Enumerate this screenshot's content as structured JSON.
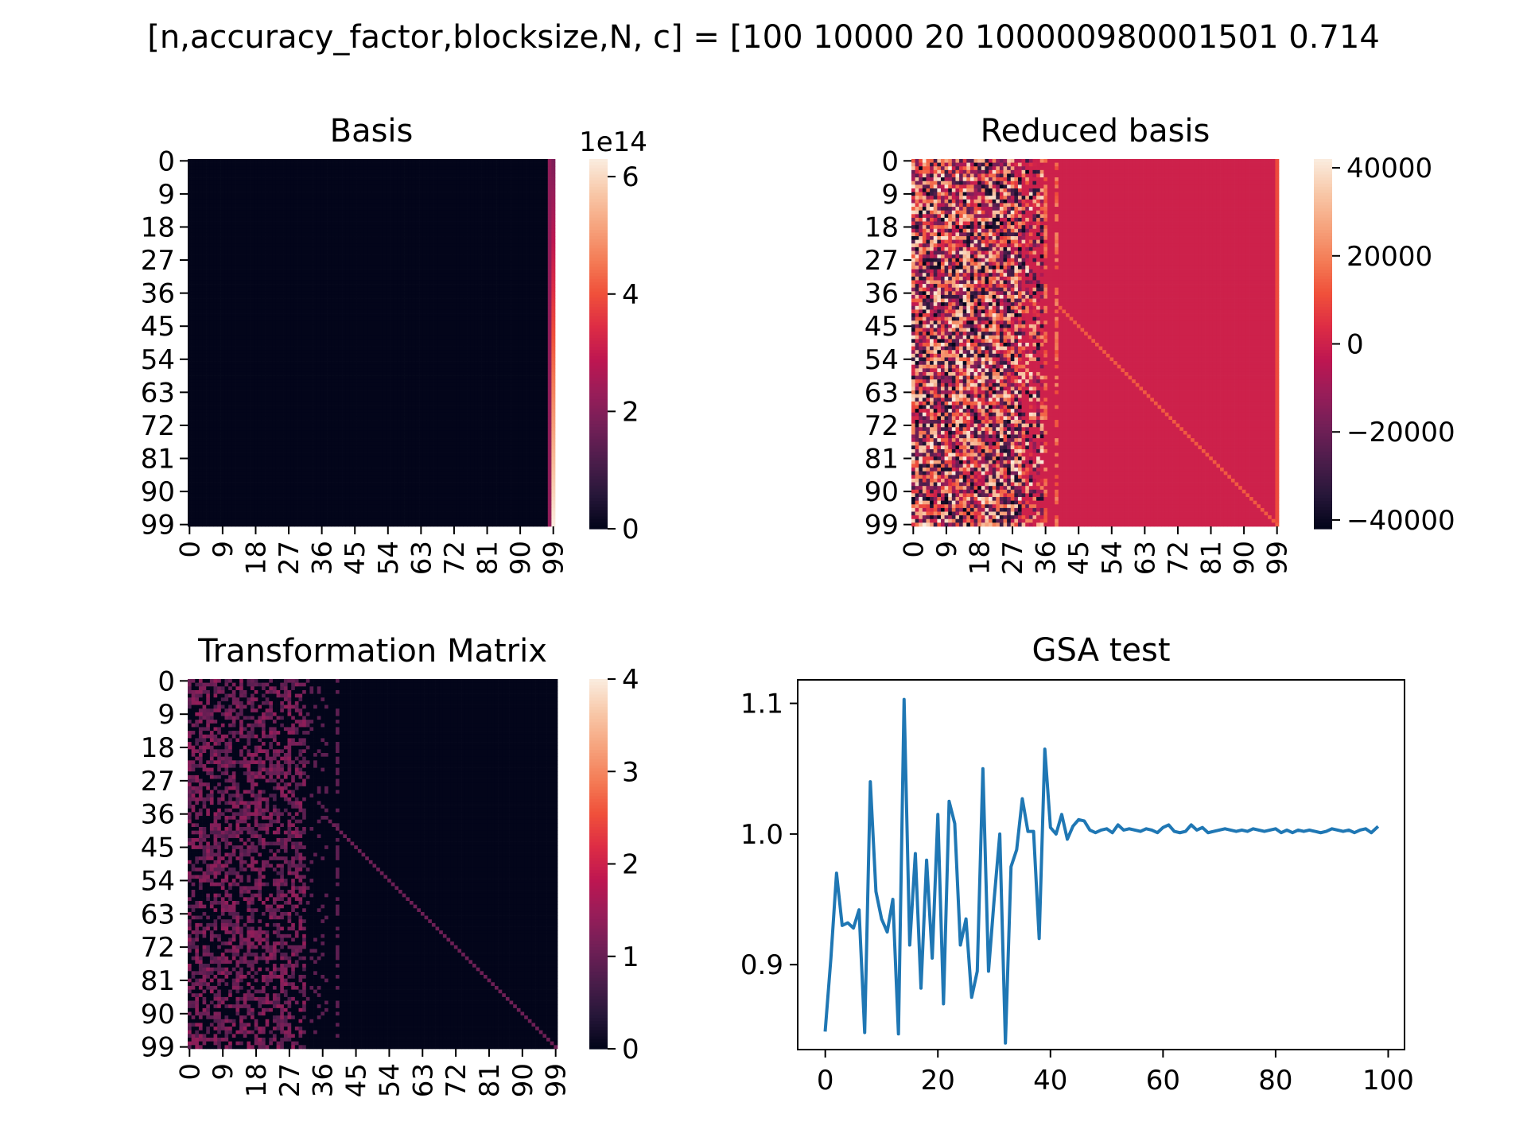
{
  "figure": {
    "suptitle": "[n,accuracy_factor,blocksize,N, c] = [100 10000 20 100000980001501 0.714"
  },
  "chart_data": [
    {
      "type": "heatmap",
      "title": "Basis",
      "rows": 100,
      "cols": 100,
      "x_tick_labels": [
        "0",
        "9",
        "18",
        "27",
        "36",
        "45",
        "54",
        "63",
        "72",
        "81",
        "90",
        "99"
      ],
      "y_tick_labels": [
        "0",
        "9",
        "18",
        "27",
        "36",
        "45",
        "54",
        "63",
        "72",
        "81",
        "90",
        "99"
      ],
      "colorbar": {
        "min": 0,
        "max": 6.3,
        "ticks": [
          "0",
          "2",
          "4",
          "6"
        ],
        "tick_values": [
          0,
          2,
          4,
          6
        ],
        "offset_label": "1e14",
        "colormap": "rocket"
      }
    },
    {
      "type": "heatmap",
      "title": "Reduced basis",
      "rows": 100,
      "cols": 100,
      "x_tick_labels": [
        "0",
        "9",
        "18",
        "27",
        "36",
        "45",
        "54",
        "63",
        "72",
        "81",
        "90",
        "99"
      ],
      "y_tick_labels": [
        "0",
        "9",
        "18",
        "27",
        "36",
        "45",
        "54",
        "63",
        "72",
        "81",
        "90",
        "99"
      ],
      "colorbar": {
        "min": -42000,
        "max": 42000,
        "ticks": [
          "−40000",
          "−20000",
          "0",
          "20000",
          "40000"
        ],
        "tick_values": [
          -40000,
          -20000,
          0,
          20000,
          40000
        ],
        "colormap": "rocket"
      }
    },
    {
      "type": "heatmap",
      "title": "Transformation Matrix",
      "rows": 100,
      "cols": 100,
      "x_tick_labels": [
        "0",
        "9",
        "18",
        "27",
        "36",
        "45",
        "54",
        "63",
        "72",
        "81",
        "90",
        "99"
      ],
      "y_tick_labels": [
        "0",
        "9",
        "18",
        "27",
        "36",
        "45",
        "54",
        "63",
        "72",
        "81",
        "90",
        "99"
      ],
      "colorbar": {
        "min": 0,
        "max": 4,
        "ticks": [
          "0",
          "1",
          "2",
          "3",
          "4"
        ],
        "tick_values": [
          0,
          1,
          2,
          3,
          4
        ],
        "colormap": "rocket"
      }
    },
    {
      "type": "line",
      "title": "GSA test",
      "x_start": 0,
      "values": [
        0.85,
        0.905,
        0.97,
        0.93,
        0.932,
        0.928,
        0.942,
        0.848,
        1.04,
        0.956,
        0.935,
        0.925,
        0.95,
        0.847,
        1.103,
        0.915,
        0.985,
        0.882,
        0.98,
        0.905,
        1.015,
        0.87,
        1.025,
        1.008,
        0.915,
        0.935,
        0.875,
        0.895,
        1.05,
        0.895,
        0.95,
        1.0,
        0.84,
        0.975,
        0.988,
        1.027,
        1.002,
        1.002,
        0.92,
        1.065,
        1.005,
        1.0,
        1.015,
        0.996,
        1.006,
        1.011,
        1.01,
        1.003,
        1.001,
        1.003,
        1.004,
        1.001,
        1.007,
        1.003,
        1.004,
        1.003,
        1.002,
        1.004,
        1.003,
        1.001,
        1.005,
        1.007,
        1.002,
        1.001,
        1.002,
        1.007,
        1.003,
        1.005,
        1.001,
        1.002,
        1.003,
        1.004,
        1.003,
        1.002,
        1.003,
        1.002,
        1.004,
        1.003,
        1.002,
        1.003,
        1.004,
        1.001,
        1.003,
        1.001,
        1.003,
        1.002,
        1.003,
        1.002,
        1.001,
        1.002,
        1.004,
        1.003,
        1.002,
        1.003,
        1.001,
        1.003,
        1.004,
        1.001,
        1.005
      ],
      "xlim": [
        -4.9,
        102.9
      ],
      "ylim": [
        0.835,
        1.118
      ],
      "x_ticks": [
        0,
        20,
        40,
        60,
        80,
        100
      ],
      "y_ticks": [
        0.9,
        1.0,
        1.1
      ],
      "y_tick_labels": [
        "0.9",
        "1.0",
        "1.1"
      ],
      "line_color": "#1f77b4"
    }
  ]
}
